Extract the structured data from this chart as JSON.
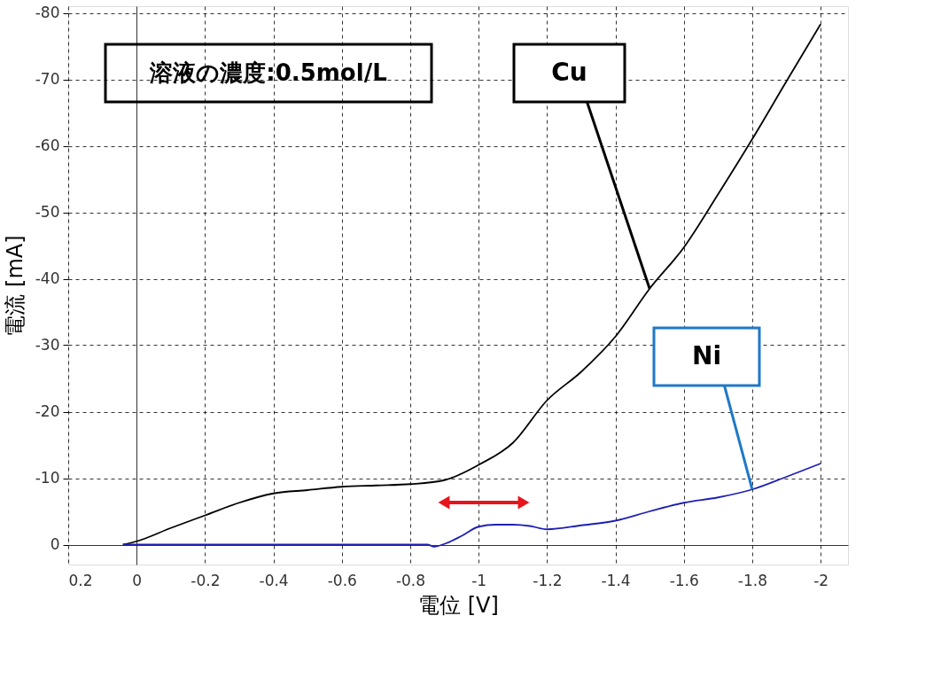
{
  "chart_data": {
    "type": "line",
    "xlabel": "電位 [V]",
    "ylabel": "電流 [mA]",
    "annotations": [
      "溶液の濃度:0.5mol/L"
    ],
    "xlim": [
      0.2,
      -2.08
    ],
    "ylim": [
      3,
      -81
    ],
    "xticks": [
      0.2,
      0,
      -0.2,
      -0.4,
      -0.6,
      -0.8,
      -1,
      -1.2,
      -1.4,
      -1.6,
      -1.8,
      -2
    ],
    "yticks": [
      0,
      -10,
      -20,
      -30,
      -40,
      -50,
      -60,
      -70,
      -80
    ],
    "grid": true,
    "line_style": "solid",
    "series": [
      {
        "name": "Cu",
        "color": "#000000",
        "x": [
          0.04,
          0,
          -0.1,
          -0.2,
          -0.3,
          -0.4,
          -0.5,
          -0.6,
          -0.7,
          -0.8,
          -0.9,
          -1.0,
          -1.1,
          -1.2,
          -1.3,
          -1.4,
          -1.5,
          -1.6,
          -1.7,
          -1.8,
          -1.9,
          -2.0
        ],
        "values": [
          0,
          -0.5,
          -2.5,
          -4.4,
          -6.3,
          -7.7,
          -8.2,
          -8.7,
          -8.9,
          -9.1,
          -9.7,
          -12,
          -15.3,
          -21.7,
          -26,
          -31.3,
          -38.5,
          -44.7,
          -52.7,
          -61,
          -69.7,
          -78.3
        ]
      },
      {
        "name": "Ni",
        "color": "#1f1fb4",
        "x": [
          0.04,
          -0.85,
          -0.87,
          -0.9,
          -0.95,
          -1.0,
          -1.05,
          -1.1,
          -1.15,
          -1.2,
          -1.3,
          -1.4,
          -1.5,
          -1.6,
          -1.7,
          -1.8,
          -1.9,
          -2.0
        ],
        "values": [
          0,
          0,
          0.3,
          -0.1,
          -1.3,
          -2.7,
          -3.0,
          -3.0,
          -2.8,
          -2.3,
          -2.9,
          -3.6,
          -5,
          -6.3,
          -7.1,
          -8.3,
          -10.2,
          -12.2
        ]
      }
    ]
  }
}
